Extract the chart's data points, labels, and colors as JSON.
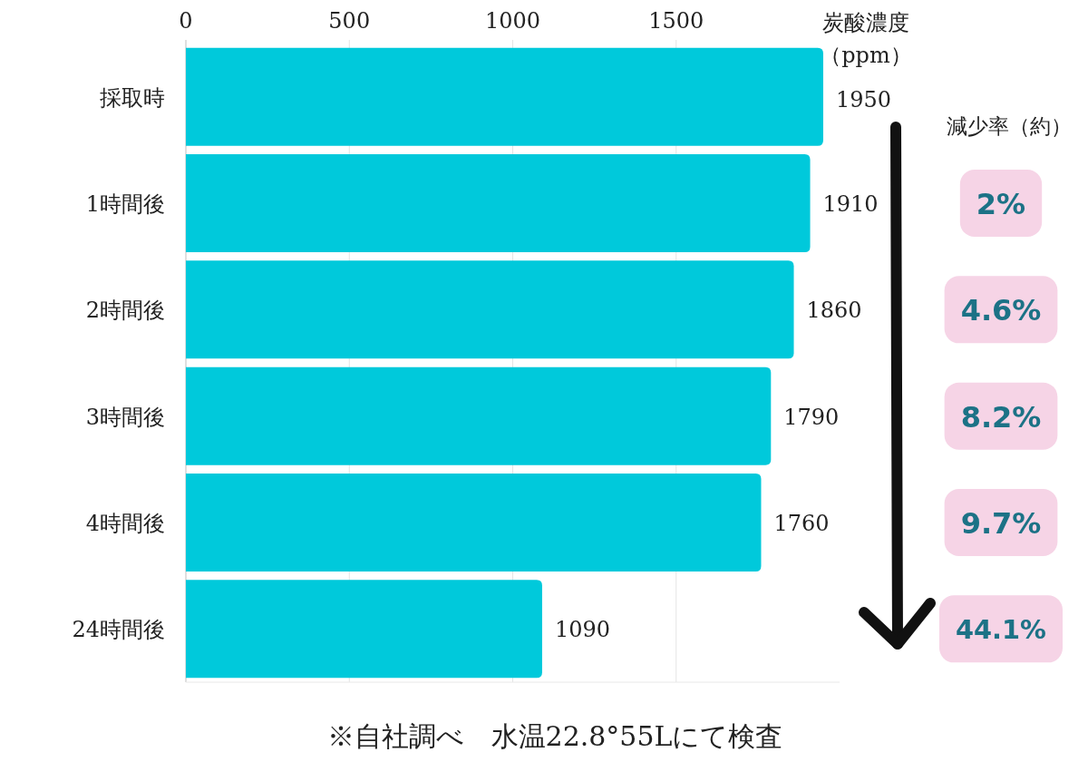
{
  "chart_data": {
    "type": "bar",
    "orientation": "horizontal",
    "xlabel": "炭酸濃度（ppm）",
    "categories": [
      "採取時",
      "1時間後",
      "2時間後",
      "3時間後",
      "4時間後",
      "24時間後"
    ],
    "values": [
      1950,
      1910,
      1860,
      1790,
      1760,
      1090
    ],
    "color": "#00c9db",
    "xlim": [
      0,
      2000
    ],
    "xticks": [
      0,
      500,
      1000,
      1500
    ],
    "grid": "x",
    "data_labels": true,
    "annotations": [
      "減少率（約）",
      "2%",
      "4.6%",
      "8.2%",
      "9.7%",
      "44.1%",
      "※自社調べ　水温22.8°55Lにて検査"
    ]
  }
}
